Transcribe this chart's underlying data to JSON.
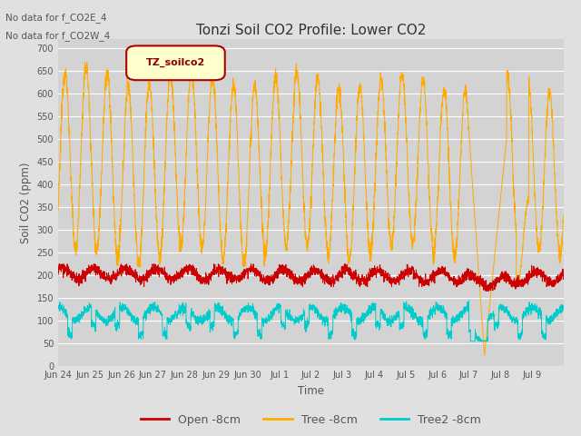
{
  "title": "Tonzi Soil CO2 Profile: Lower CO2",
  "ylabel": "Soil CO2 (ppm)",
  "xlabel": "Time",
  "annotations": [
    "No data for f_CO2E_4",
    "No data for f_CO2W_4"
  ],
  "legend_label": "TZ_soilco2",
  "legend_entries": [
    "Open -8cm",
    "Tree -8cm",
    "Tree2 -8cm"
  ],
  "legend_colors": [
    "#cc0000",
    "#ffaa00",
    "#00cccc"
  ],
  "ylim": [
    0,
    720
  ],
  "yticks": [
    0,
    50,
    100,
    150,
    200,
    250,
    300,
    350,
    400,
    450,
    500,
    550,
    600,
    650,
    700
  ],
  "background_color": "#e0e0e0",
  "plot_bg_color": "#d3d3d3",
  "grid_color": "#ffffff",
  "open_color": "#cc0000",
  "tree_color": "#ffaa00",
  "tree2_color": "#00cccc",
  "n_days": 16,
  "dt": 0.005,
  "figwidth": 6.4,
  "figheight": 4.8,
  "dpi": 100
}
